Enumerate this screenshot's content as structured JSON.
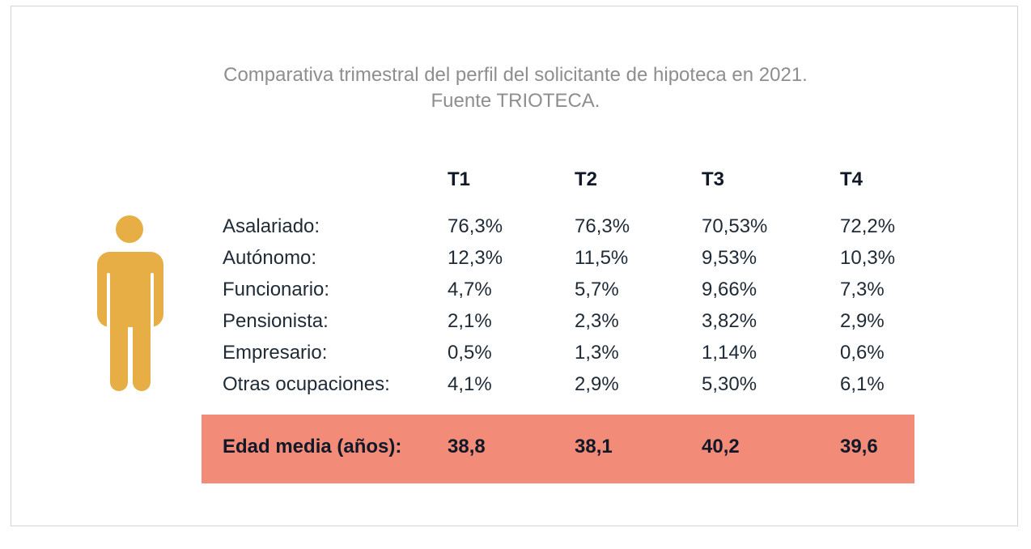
{
  "title_line1": "Comparativa trimestral del perfil del solicitante de hipoteca en 2021.",
  "title_line2": "Fuente TRIOTECA.",
  "colors": {
    "icon": "#e6ae45",
    "highlight_row": "#f28b77",
    "title_text": "#8e8e8e",
    "body_text": "#1f2a37",
    "frame_border": "#d4d4d4"
  },
  "icon": "person-icon",
  "chart_data": {
    "type": "table",
    "title": "Comparativa trimestral del perfil del solicitante de hipoteca en 2021.",
    "subtitle": "Fuente TRIOTECA.",
    "columns": [
      "T1",
      "T2",
      "T3",
      "T4"
    ],
    "rows": [
      {
        "label": "Asalariado:",
        "values": [
          "76,3%",
          "76,3%",
          "70,53%",
          "72,2%"
        ]
      },
      {
        "label": "Autónomo:",
        "values": [
          "12,3%",
          "11,5%",
          "9,53%",
          "10,3%"
        ]
      },
      {
        "label": "Funcionario:",
        "values": [
          "4,7%",
          "5,7%",
          "9,66%",
          "7,3%"
        ]
      },
      {
        "label": "Pensionista:",
        "values": [
          "2,1%",
          "2,3%",
          "3,82%",
          "2,9%"
        ]
      },
      {
        "label": "Empresario:",
        "values": [
          "0,5%",
          "1,3%",
          "1,14%",
          "0,6%"
        ]
      },
      {
        "label": "Otras ocupaciones:",
        "values": [
          "4,1%",
          "2,9%",
          "5,30%",
          "6,1%"
        ]
      }
    ],
    "summary_row": {
      "label": "Edad media (años):",
      "values": [
        "38,8",
        "38,1",
        "40,2",
        "39,6"
      ]
    }
  }
}
